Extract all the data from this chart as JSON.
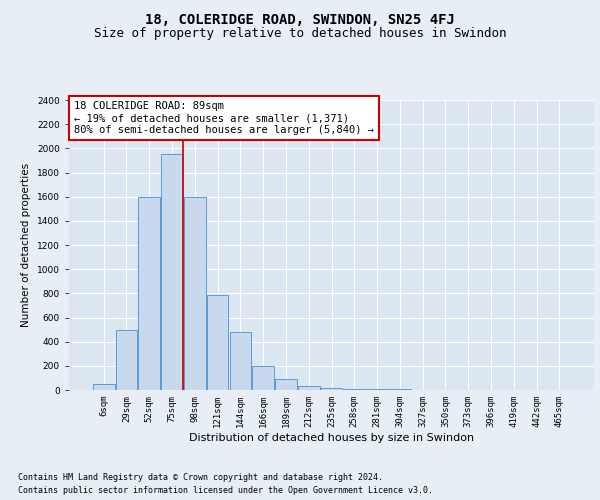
{
  "title": "18, COLERIDGE ROAD, SWINDON, SN25 4FJ",
  "subtitle": "Size of property relative to detached houses in Swindon",
  "xlabel": "Distribution of detached houses by size in Swindon",
  "ylabel": "Number of detached properties",
  "categories": [
    "6sqm",
    "29sqm",
    "52sqm",
    "75sqm",
    "98sqm",
    "121sqm",
    "144sqm",
    "166sqm",
    "189sqm",
    "212sqm",
    "235sqm",
    "258sqm",
    "281sqm",
    "304sqm",
    "327sqm",
    "350sqm",
    "373sqm",
    "396sqm",
    "419sqm",
    "442sqm",
    "465sqm"
  ],
  "values": [
    50,
    500,
    1600,
    1950,
    1600,
    790,
    480,
    200,
    90,
    30,
    20,
    5,
    5,
    5,
    0,
    0,
    0,
    0,
    0,
    0,
    0
  ],
  "bar_color": "#c9d9ed",
  "bar_edge_color": "#5b9bd5",
  "vline_x": 3.5,
  "vline_color": "#cc0000",
  "annotation_text": "18 COLERIDGE ROAD: 89sqm\n← 19% of detached houses are smaller (1,371)\n80% of semi-detached houses are larger (5,840) →",
  "annotation_box_facecolor": "#ffffff",
  "annotation_box_edgecolor": "#cc0000",
  "ylim": [
    0,
    2400
  ],
  "yticks": [
    0,
    200,
    400,
    600,
    800,
    1000,
    1200,
    1400,
    1600,
    1800,
    2000,
    2200,
    2400
  ],
  "bg_color": "#e8eef5",
  "plot_bg_color": "#dce6f1",
  "grid_color": "#ffffff",
  "footer_line1": "Contains HM Land Registry data © Crown copyright and database right 2024.",
  "footer_line2": "Contains public sector information licensed under the Open Government Licence v3.0.",
  "title_fontsize": 10,
  "subtitle_fontsize": 9,
  "xlabel_fontsize": 8,
  "ylabel_fontsize": 7.5,
  "tick_fontsize": 6.5,
  "annotation_fontsize": 7.5,
  "footer_fontsize": 6
}
